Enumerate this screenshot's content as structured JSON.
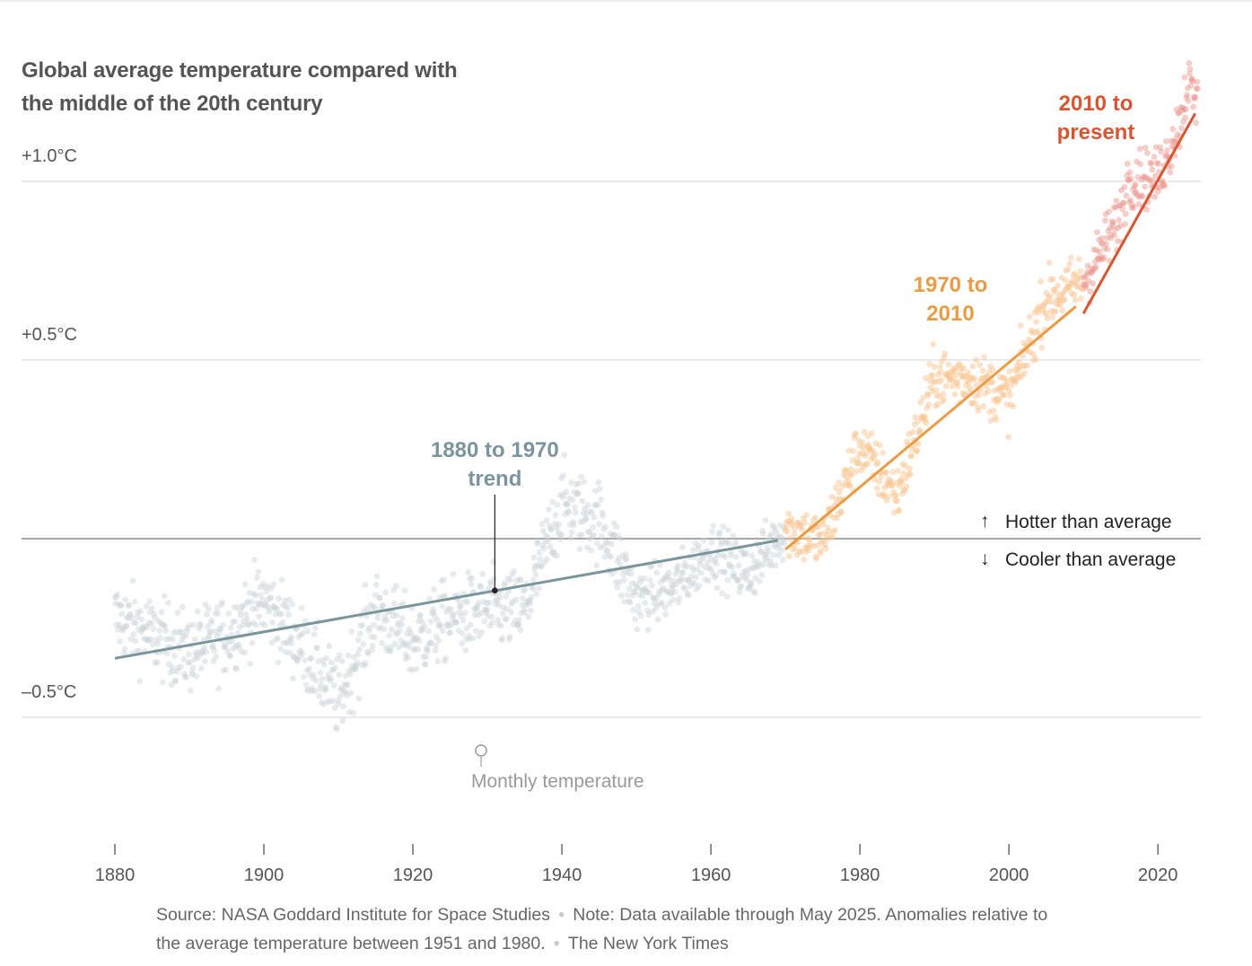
{
  "title": "Global average temperature compared with the middle of the 20th century",
  "source": {
    "source_text": "Source: NASA Goddard Institute for Space Studies",
    "note_text": "Note: Data available through May 2025. Anomalies relative to the average temperature between 1951 and 1980.",
    "credit": "The New York Times"
  },
  "chart_data": {
    "type": "scatter",
    "title": "Global average temperature compared with the middle of the 20th century",
    "xlabel": "",
    "ylabel": "",
    "x_ticks": [
      1880,
      1900,
      1920,
      1940,
      1960,
      1980,
      2000,
      2020
    ],
    "y_ticks": [
      {
        "value": 1.0,
        "label": "+1.0°C"
      },
      {
        "value": 0.5,
        "label": "+0.5°C"
      },
      {
        "value": 0.0,
        "label": ""
      },
      {
        "value": -0.5,
        "label": "–0.5°C"
      }
    ],
    "xlim": [
      1880,
      2025.4
    ],
    "ylim": [
      -0.85,
      1.5
    ],
    "grid": true,
    "reference_line": {
      "value": 0.0,
      "above_label": "Hotter than average",
      "below_label": "Cooler than average",
      "above_arrow": "↑",
      "below_arrow": "↓"
    },
    "monthly_points": {
      "label": "Monthly temperature",
      "resolution": "monthly, Jan 1880 – May 2025",
      "yearly_mean_anomaly": [
        {
          "year": 1880,
          "value": -0.22
        },
        {
          "year": 1885,
          "value": -0.27
        },
        {
          "year": 1890,
          "value": -0.32
        },
        {
          "year": 1895,
          "value": -0.27
        },
        {
          "year": 1900,
          "value": -0.17
        },
        {
          "year": 1905,
          "value": -0.3
        },
        {
          "year": 1910,
          "value": -0.45
        },
        {
          "year": 1915,
          "value": -0.2
        },
        {
          "year": 1920,
          "value": -0.29
        },
        {
          "year": 1925,
          "value": -0.22
        },
        {
          "year": 1930,
          "value": -0.2
        },
        {
          "year": 1935,
          "value": -0.2
        },
        {
          "year": 1940,
          "value": 0.1
        },
        {
          "year": 1945,
          "value": 0.05
        },
        {
          "year": 1950,
          "value": -0.17
        },
        {
          "year": 1955,
          "value": -0.14
        },
        {
          "year": 1960,
          "value": -0.03
        },
        {
          "year": 1965,
          "value": -0.1
        },
        {
          "year": 1970,
          "value": 0.03
        },
        {
          "year": 1975,
          "value": -0.01
        },
        {
          "year": 1980,
          "value": 0.26
        },
        {
          "year": 1985,
          "value": 0.12
        },
        {
          "year": 1990,
          "value": 0.45
        },
        {
          "year": 1995,
          "value": 0.45
        },
        {
          "year": 2000,
          "value": 0.39
        },
        {
          "year": 2005,
          "value": 0.67
        },
        {
          "year": 2010,
          "value": 0.72
        },
        {
          "year": 2015,
          "value": 0.9
        },
        {
          "year": 2016,
          "value": 1.01
        },
        {
          "year": 2020,
          "value": 1.01
        },
        {
          "year": 2023,
          "value": 1.17
        },
        {
          "year": 2024,
          "value": 1.28
        },
        {
          "year": 2025,
          "value": 1.22
        }
      ]
    },
    "series": [
      {
        "name": "1880 to 1970 trend",
        "color": "#7b959d",
        "x": [
          1880,
          1969
        ],
        "y": [
          -0.335,
          -0.005
        ],
        "marker_x": 1931,
        "marker_y": -0.145
      },
      {
        "name": "1970 to 2010",
        "color": "#e99b45",
        "x": [
          1970,
          2009
        ],
        "y": [
          -0.03,
          0.65
        ]
      },
      {
        "name": "2010 to present",
        "color": "#d85532",
        "x": [
          2010,
          2025
        ],
        "y": [
          0.63,
          1.19
        ]
      }
    ],
    "point_colors": {
      "pre1970": "#c9d3d6",
      "y1970_2010": "#f7c592",
      "post2010": "#e9928a"
    }
  },
  "labels": {
    "trend1_line1": "1880 to 1970",
    "trend1_line2": "trend",
    "trend2_line1": "1970 to",
    "trend2_line2": "2010",
    "trend3_line1": "2010 to",
    "trend3_line2": "present"
  }
}
